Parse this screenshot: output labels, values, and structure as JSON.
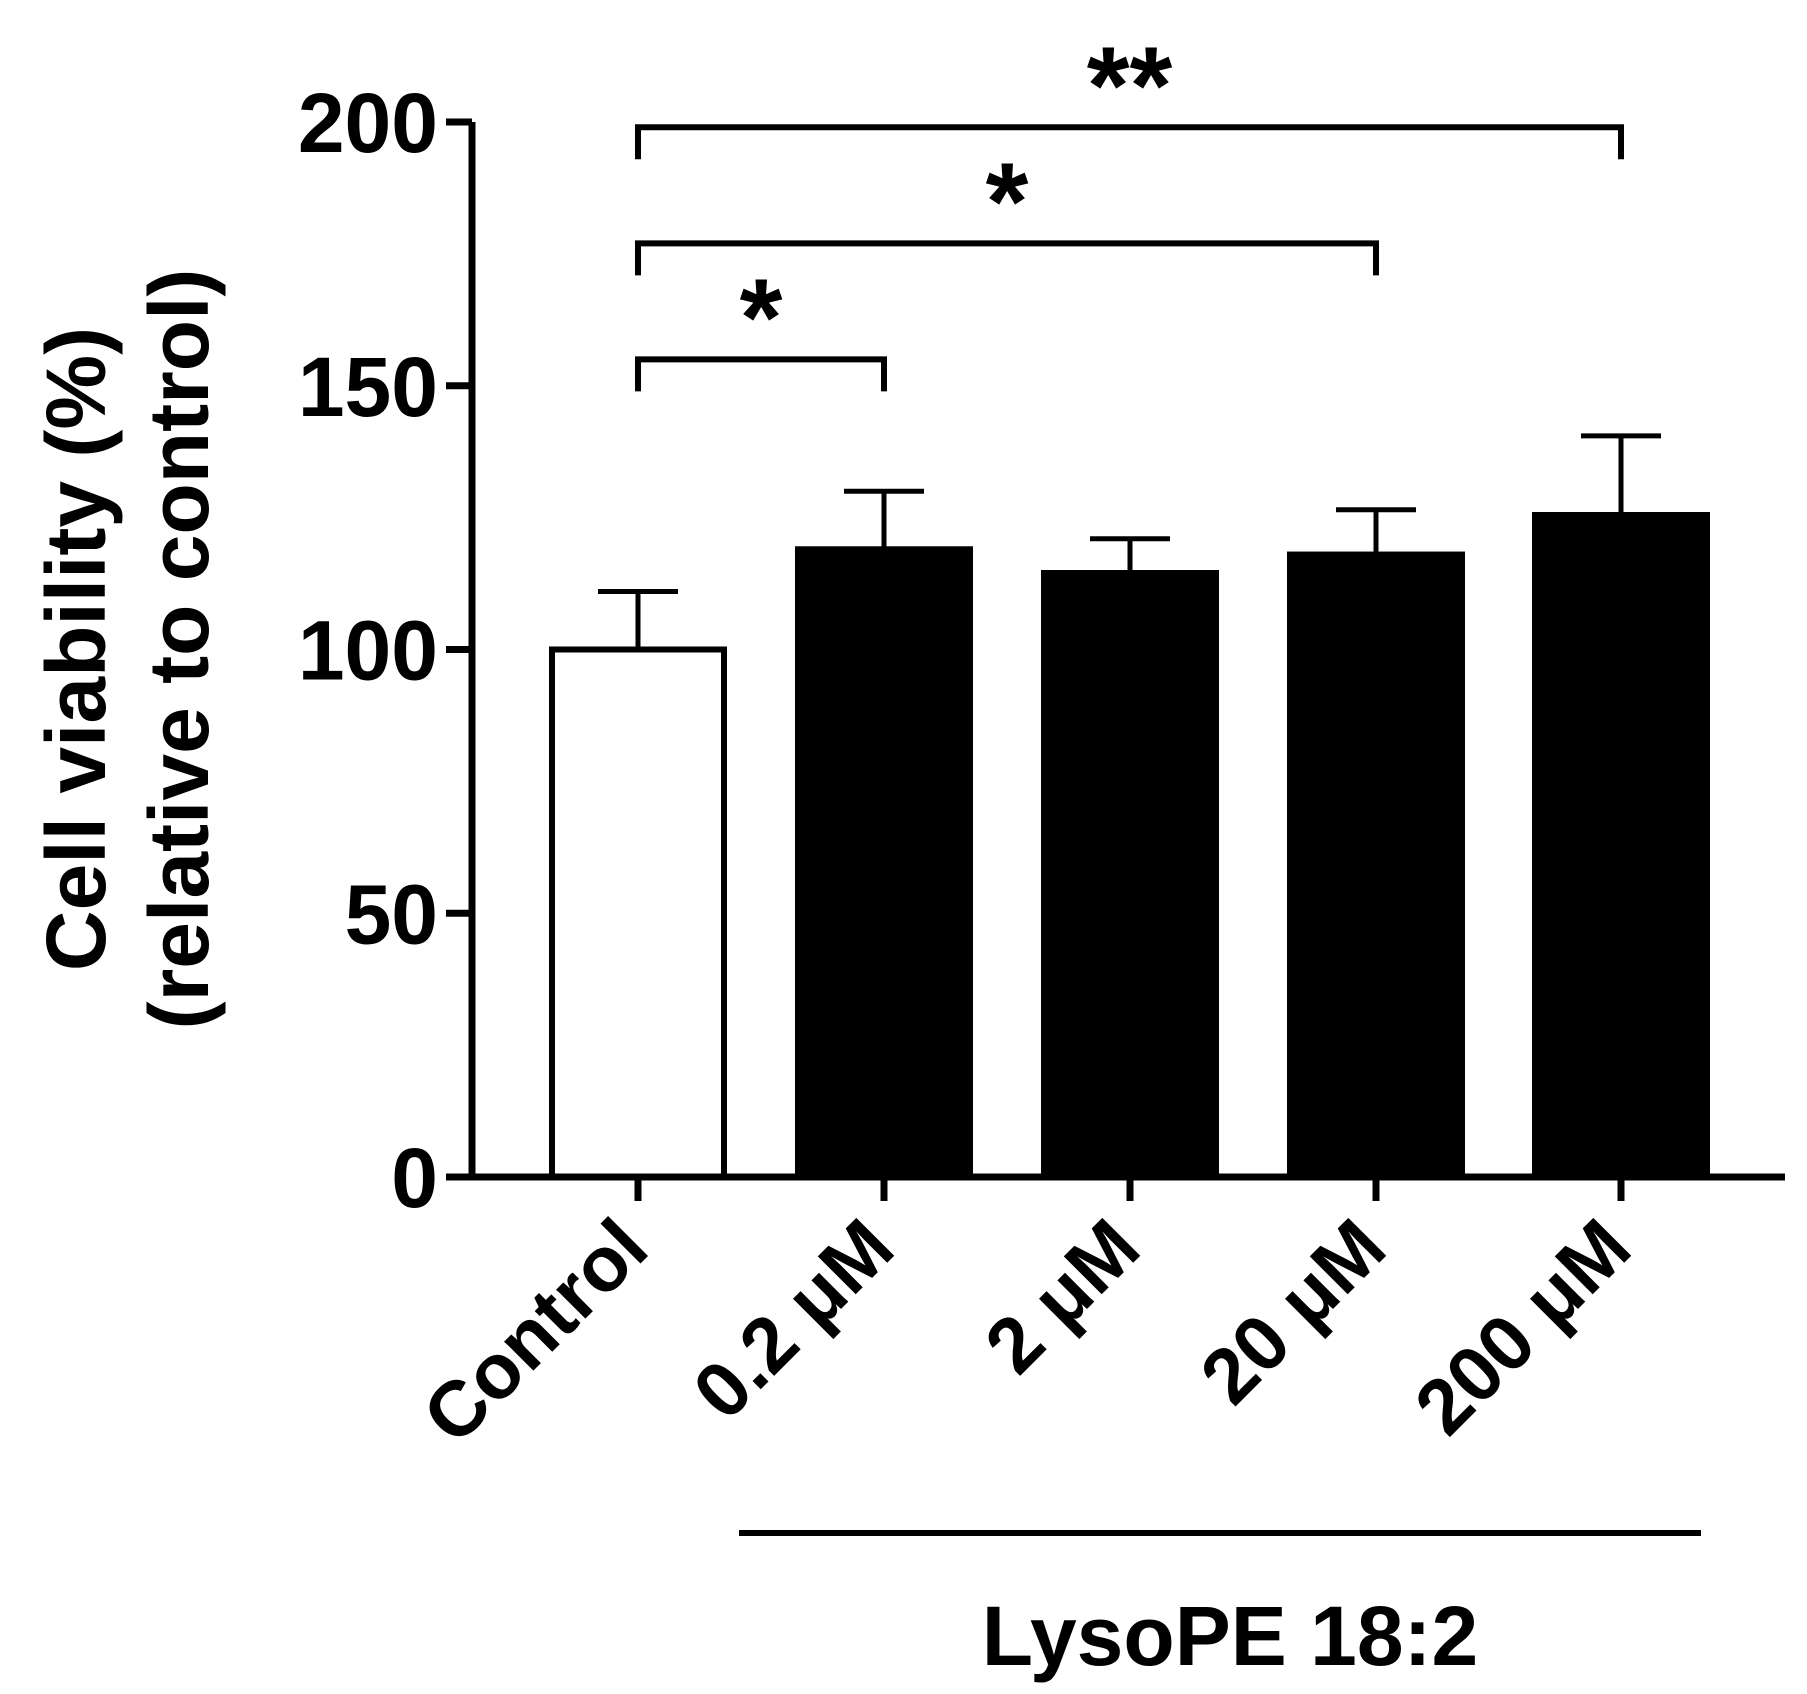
{
  "chart_data": {
    "type": "bar",
    "categories": [
      "Control",
      "0.2 μM",
      "2 μM",
      "20 μM",
      "200 μM"
    ],
    "values": [
      100,
      119,
      114.5,
      118,
      125.5
    ],
    "errors": [
      11,
      11,
      6.5,
      8.5,
      15
    ],
    "bar_colors": [
      "#ffffff",
      "#000000",
      "#000000",
      "#000000",
      "#000000"
    ],
    "ylabel_lines": [
      "Cell viability (%)",
      "(relative to control)"
    ],
    "ylim": [
      0,
      200
    ],
    "yticks": [
      0,
      50,
      100,
      150,
      200
    ],
    "ytick_labels": [
      "0",
      "50",
      "100",
      "150",
      "200"
    ],
    "group_label": "LysoPE 18:2",
    "group_span": [
      "0.2 μM",
      "200 μM"
    ],
    "significance": [
      {
        "from": "Control",
        "to": "0.2 μM",
        "label": "*",
        "level": 155
      },
      {
        "from": "Control",
        "to": "20 μM",
        "label": "*",
        "level": 177
      },
      {
        "from": "Control",
        "to": "200 μM",
        "label": "**",
        "level": 199
      }
    ],
    "grid": false,
    "legend": "none"
  }
}
